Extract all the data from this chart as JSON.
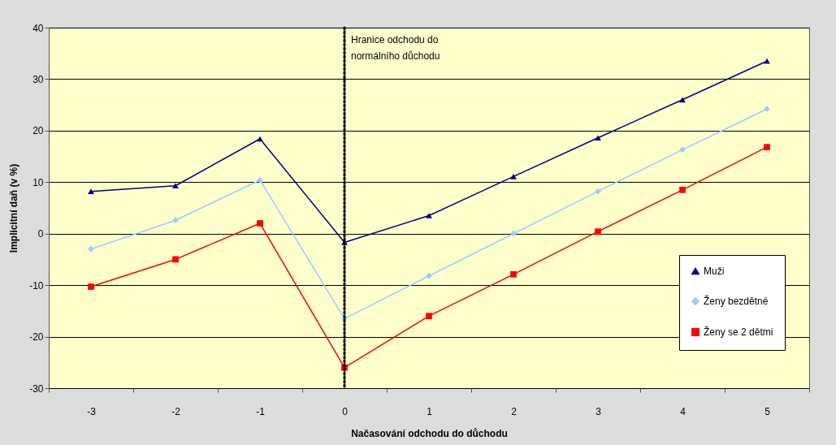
{
  "chart_data": {
    "type": "line",
    "xlabel": "Načasování odchodu do důchodu",
    "ylabel": "Implicitní daň (v %)",
    "categories": [
      "-3",
      "-2",
      "-1",
      "0",
      "1",
      "2",
      "3",
      "4",
      "5"
    ],
    "series": [
      {
        "name": "Muži",
        "color": "#000080",
        "marker": "triangle",
        "values": [
          8.2,
          9.3,
          18.4,
          -1.7,
          3.5,
          11.1,
          18.6,
          26.0,
          33.5
        ]
      },
      {
        "name": "Ženy bezdětné",
        "color": "#99ccff",
        "marker": "diamond",
        "values": [
          -3.0,
          2.6,
          10.4,
          -16.5,
          -8.2,
          0.0,
          8.2,
          16.3,
          24.2
        ]
      },
      {
        "name": "Ženy se 2 dětmi",
        "color": "#ff0000",
        "marker": "square",
        "values": [
          -10.3,
          -5.0,
          2.0,
          -26.0,
          -16.0,
          -7.9,
          0.4,
          8.5,
          16.8
        ]
      }
    ],
    "ylim": [
      -30,
      40
    ],
    "yticks": [
      -30,
      -20,
      -10,
      0,
      10,
      20,
      30,
      40
    ],
    "grid": "y",
    "legend": "right",
    "ref_lines": [
      {
        "axis": "x",
        "value": "0",
        "label": "Hranice odchodu do normálního důchodu",
        "color": "#000000",
        "line_style": "dotted"
      }
    ]
  }
}
